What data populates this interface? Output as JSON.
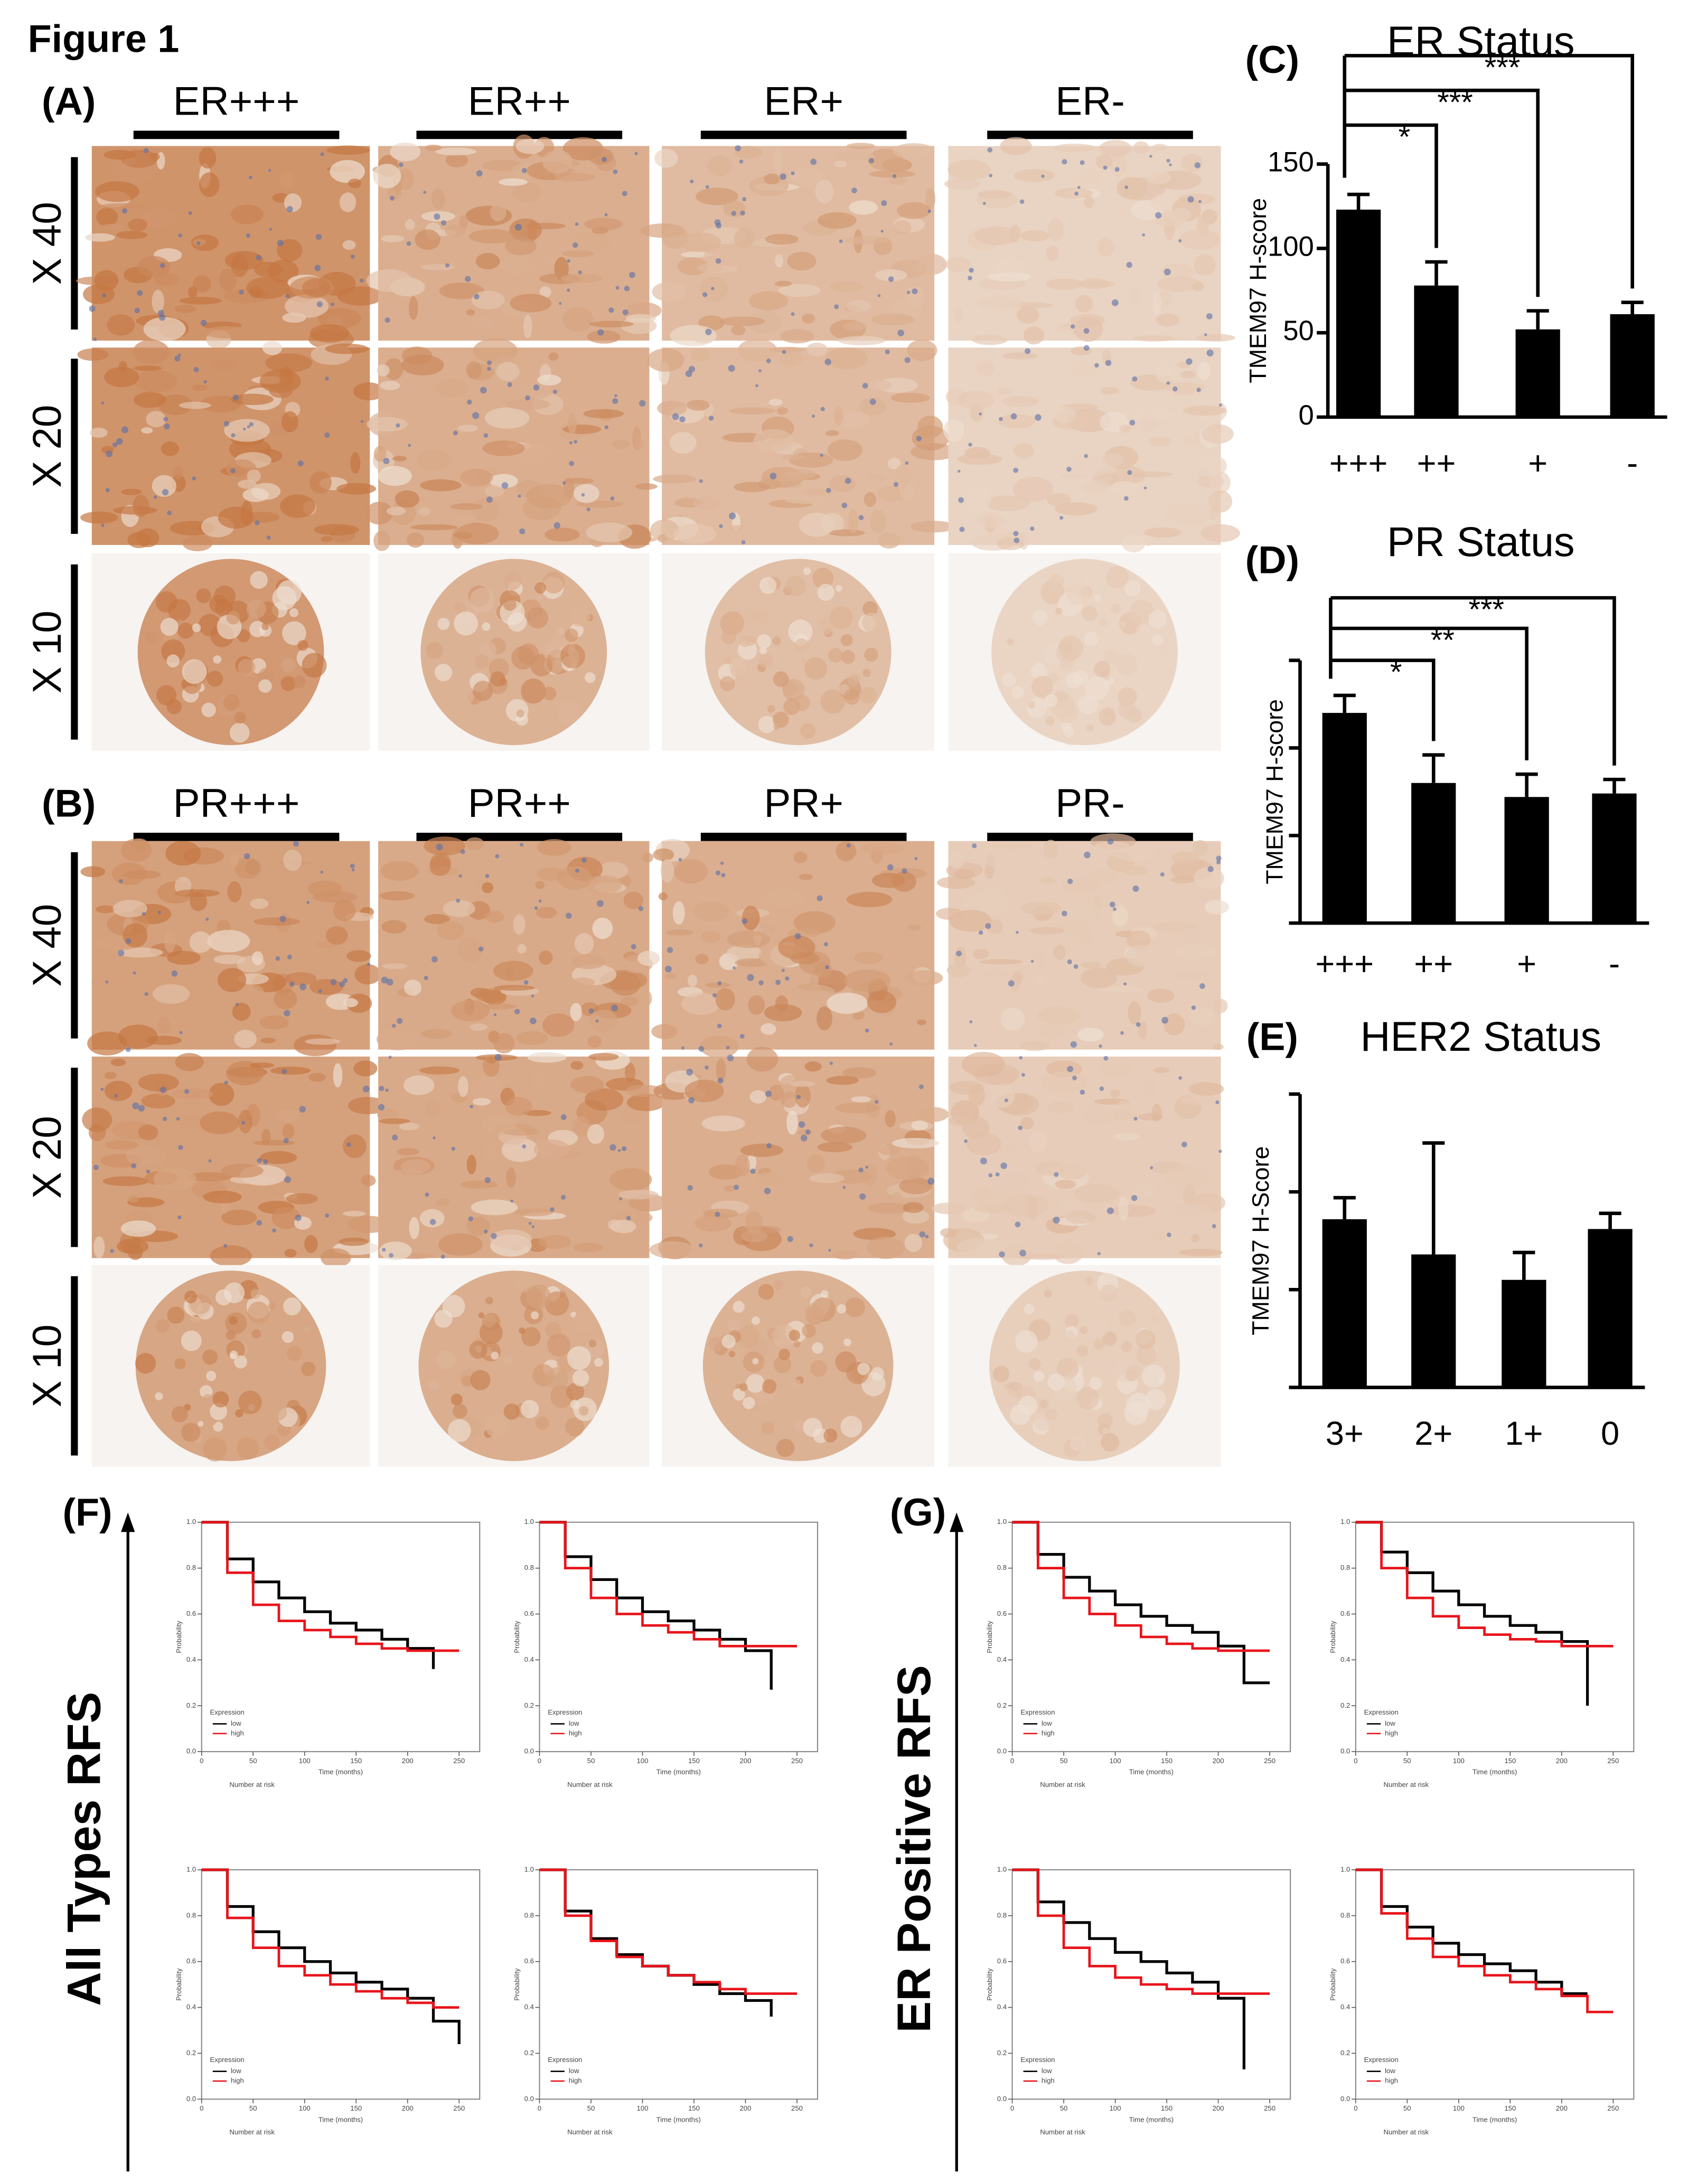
{
  "figure_title": "Figure 1",
  "panels": {
    "A": {
      "label": "(A)",
      "columns": [
        "ER+++",
        "ER++",
        "ER+",
        "ER-"
      ],
      "rows": [
        "X 40",
        "X 20",
        "X 10"
      ]
    },
    "B": {
      "label": "(B)",
      "columns": [
        "PR+++",
        "PR++",
        "PR+",
        "PR-"
      ],
      "rows": [
        "X 40",
        "X 20",
        "X 10"
      ]
    },
    "F": {
      "label": "(F)",
      "side_label": "All Types RFS"
    },
    "G": {
      "label": "(G)",
      "side_label": "ER Positive RFS"
    }
  },
  "chart_data": [
    {
      "type": "bar",
      "panel_label": "(C)",
      "title": "ER Status",
      "y_label": "TMEM97 H-score",
      "categories": [
        "+++",
        "++",
        "+",
        "-"
      ],
      "values": [
        123,
        78,
        52,
        61
      ],
      "errors": [
        9,
        14,
        11,
        7
      ],
      "color": "#000000",
      "ylim": [
        0,
        150
      ],
      "yticks": [
        0,
        50,
        100,
        150
      ],
      "ytick_labels": true,
      "significance": [
        {
          "against": "++",
          "label": "*"
        },
        {
          "against": "+",
          "label": "***"
        },
        {
          "against": "-",
          "label": "***"
        }
      ]
    },
    {
      "type": "bar",
      "panel_label": "(D)",
      "title": "PR Status",
      "y_label": "TMEM97 H-score",
      "categories": [
        "+++",
        "++",
        "+",
        "-"
      ],
      "values": [
        120,
        80,
        72,
        74
      ],
      "errors": [
        10,
        16,
        13,
        8
      ],
      "color": "#000000",
      "ylim": [
        0,
        150
      ],
      "yticks": [
        0,
        50,
        100,
        150
      ],
      "ytick_labels": false,
      "significance": [
        {
          "against": "++",
          "label": "*"
        },
        {
          "against": "+",
          "label": "**"
        },
        {
          "against": "-",
          "label": "***"
        }
      ]
    },
    {
      "type": "bar",
      "panel_label": "(E)",
      "title": "HER2 Status",
      "y_label": "TMEM97  H-Score",
      "categories": [
        "3+",
        "2+",
        "1+",
        "0"
      ],
      "values": [
        86,
        68,
        55,
        81
      ],
      "errors": [
        11,
        57,
        14,
        8
      ],
      "color": "#000000",
      "ylim": [
        0,
        150
      ],
      "yticks": [
        0,
        50,
        100,
        150
      ],
      "ytick_labels": false,
      "significance": []
    },
    {
      "type": "line",
      "panel": "F",
      "x_label": "Time (months)",
      "y_label": "Probability",
      "legend_title": "Expression",
      "risk_title": "Number at risk",
      "x": [
        0,
        25,
        50,
        75,
        100,
        125,
        150,
        175,
        200,
        225,
        250
      ],
      "xlim": [
        0,
        270
      ],
      "xticks": [
        0,
        50,
        100,
        150,
        200,
        250
      ],
      "ylim": [
        0,
        1
      ],
      "yticks": [
        {
          "value": 0,
          "label": "0.0"
        },
        {
          "value": 0.2,
          "label": "0.2"
        },
        {
          "value": 0.4,
          "label": "0.4"
        },
        {
          "value": 0.6,
          "label": "0.6"
        },
        {
          "value": 0.8,
          "label": "0.8"
        },
        {
          "value": 1,
          "label": "1.0"
        }
      ],
      "series": [
        {
          "name": "low",
          "color": "#000000",
          "values": [
            1,
            0.84,
            0.74,
            0.67,
            0.61,
            0.56,
            0.53,
            0.49,
            0.45,
            0.36,
            null
          ]
        },
        {
          "name": "high",
          "color": "#e8141b",
          "values": [
            1,
            0.78,
            0.64,
            0.57,
            0.53,
            0.5,
            0.47,
            0.45,
            0.44,
            0.44,
            0.44
          ]
        }
      ]
    },
    {
      "type": "line",
      "panel": "F",
      "x_label": "Time (months)",
      "y_label": "Probability",
      "legend_title": "Expression",
      "risk_title": "Number at risk",
      "x": [
        0,
        25,
        50,
        75,
        100,
        125,
        150,
        175,
        200,
        225,
        250
      ],
      "xlim": [
        0,
        270
      ],
      "xticks": [
        0,
        50,
        100,
        150,
        200,
        250
      ],
      "ylim": [
        0,
        1
      ],
      "yticks": [
        {
          "value": 0,
          "label": "0.0"
        },
        {
          "value": 0.2,
          "label": "0.2"
        },
        {
          "value": 0.4,
          "label": "0.4"
        },
        {
          "value": 0.6,
          "label": "0.6"
        },
        {
          "value": 0.8,
          "label": "0.8"
        },
        {
          "value": 1,
          "label": "1.0"
        }
      ],
      "series": [
        {
          "name": "low",
          "color": "#000000",
          "values": [
            1,
            0.85,
            0.75,
            0.67,
            0.61,
            0.57,
            0.53,
            0.49,
            0.44,
            0.27,
            null
          ]
        },
        {
          "name": "high",
          "color": "#e8141b",
          "values": [
            1,
            0.8,
            0.67,
            0.6,
            0.55,
            0.52,
            0.49,
            0.46,
            0.46,
            0.46,
            0.46
          ]
        }
      ]
    },
    {
      "type": "line",
      "panel": "F",
      "x_label": "Time (months)",
      "y_label": "Probability",
      "legend_title": "Expression",
      "risk_title": "Number at risk",
      "x": [
        0,
        25,
        50,
        75,
        100,
        125,
        150,
        175,
        200,
        225,
        250
      ],
      "xlim": [
        0,
        270
      ],
      "xticks": [
        0,
        50,
        100,
        150,
        200,
        250
      ],
      "ylim": [
        0,
        1
      ],
      "yticks": [
        {
          "value": 0,
          "label": "0.0"
        },
        {
          "value": 0.2,
          "label": "0.2"
        },
        {
          "value": 0.4,
          "label": "0.4"
        },
        {
          "value": 0.6,
          "label": "0.6"
        },
        {
          "value": 0.8,
          "label": "0.8"
        },
        {
          "value": 1,
          "label": "1.0"
        }
      ],
      "series": [
        {
          "name": "low",
          "color": "#000000",
          "values": [
            1,
            0.84,
            0.73,
            0.66,
            0.6,
            0.55,
            0.51,
            0.48,
            0.44,
            0.34,
            0.24
          ]
        },
        {
          "name": "high",
          "color": "#e8141b",
          "values": [
            1,
            0.79,
            0.66,
            0.58,
            0.54,
            0.5,
            0.47,
            0.44,
            0.42,
            0.4,
            0.4
          ]
        }
      ]
    },
    {
      "type": "line",
      "panel": "F",
      "x_label": "Time (months)",
      "y_label": "Probability",
      "legend_title": "Expression",
      "risk_title": "Number at risk",
      "x": [
        0,
        25,
        50,
        75,
        100,
        125,
        150,
        175,
        200,
        225,
        250
      ],
      "xlim": [
        0,
        270
      ],
      "xticks": [
        0,
        50,
        100,
        150,
        200,
        250
      ],
      "ylim": [
        0,
        1
      ],
      "yticks": [
        {
          "value": 0,
          "label": "0.0"
        },
        {
          "value": 0.2,
          "label": "0.2"
        },
        {
          "value": 0.4,
          "label": "0.4"
        },
        {
          "value": 0.6,
          "label": "0.6"
        },
        {
          "value": 0.8,
          "label": "0.8"
        },
        {
          "value": 1,
          "label": "1.0"
        }
      ],
      "series": [
        {
          "name": "low",
          "color": "#000000",
          "values": [
            1,
            0.82,
            0.7,
            0.63,
            0.58,
            0.54,
            0.5,
            0.46,
            0.43,
            0.36,
            null
          ]
        },
        {
          "name": "high",
          "color": "#e8141b",
          "values": [
            1,
            0.8,
            0.69,
            0.62,
            0.58,
            0.54,
            0.51,
            0.48,
            0.46,
            0.46,
            0.46
          ]
        }
      ]
    },
    {
      "type": "line",
      "panel": "G",
      "x_label": "Time (months)",
      "y_label": "Probability",
      "legend_title": "Expression",
      "risk_title": "Number at risk",
      "x": [
        0,
        25,
        50,
        75,
        100,
        125,
        150,
        175,
        200,
        225,
        250
      ],
      "xlim": [
        0,
        270
      ],
      "xticks": [
        0,
        50,
        100,
        150,
        200,
        250
      ],
      "ylim": [
        0,
        1
      ],
      "yticks": [
        {
          "value": 0,
          "label": "0.0"
        },
        {
          "value": 0.2,
          "label": "0.2"
        },
        {
          "value": 0.4,
          "label": "0.4"
        },
        {
          "value": 0.6,
          "label": "0.6"
        },
        {
          "value": 0.8,
          "label": "0.8"
        },
        {
          "value": 1,
          "label": "1.0"
        }
      ],
      "series": [
        {
          "name": "low",
          "color": "#000000",
          "values": [
            1,
            0.86,
            0.76,
            0.7,
            0.64,
            0.59,
            0.55,
            0.52,
            0.46,
            0.3,
            0.3
          ]
        },
        {
          "name": "high",
          "color": "#e8141b",
          "values": [
            1,
            0.8,
            0.67,
            0.6,
            0.55,
            0.5,
            0.47,
            0.45,
            0.44,
            0.44,
            0.44
          ]
        }
      ]
    },
    {
      "type": "line",
      "panel": "G",
      "x_label": "Time (months)",
      "y_label": "Probability",
      "legend_title": "Expression",
      "risk_title": "Number at risk",
      "x": [
        0,
        25,
        50,
        75,
        100,
        125,
        150,
        175,
        200,
        225,
        250
      ],
      "xlim": [
        0,
        270
      ],
      "xticks": [
        0,
        50,
        100,
        150,
        200,
        250
      ],
      "ylim": [
        0,
        1
      ],
      "yticks": [
        {
          "value": 0,
          "label": "0.0"
        },
        {
          "value": 0.2,
          "label": "0.2"
        },
        {
          "value": 0.4,
          "label": "0.4"
        },
        {
          "value": 0.6,
          "label": "0.6"
        },
        {
          "value": 0.8,
          "label": "0.8"
        },
        {
          "value": 1,
          "label": "1.0"
        }
      ],
      "series": [
        {
          "name": "low",
          "color": "#000000",
          "values": [
            1,
            0.87,
            0.78,
            0.7,
            0.64,
            0.59,
            0.55,
            0.52,
            0.48,
            0.2,
            null
          ]
        },
        {
          "name": "high",
          "color": "#e8141b",
          "values": [
            1,
            0.8,
            0.67,
            0.59,
            0.54,
            0.51,
            0.49,
            0.48,
            0.46,
            0.46,
            0.46
          ]
        }
      ]
    },
    {
      "type": "line",
      "panel": "G",
      "x_label": "Time (months)",
      "y_label": "Probability",
      "legend_title": "Expression",
      "risk_title": "Number at risk",
      "x": [
        0,
        25,
        50,
        75,
        100,
        125,
        150,
        175,
        200,
        225,
        250
      ],
      "xlim": [
        0,
        270
      ],
      "xticks": [
        0,
        50,
        100,
        150,
        200,
        250
      ],
      "ylim": [
        0,
        1
      ],
      "yticks": [
        {
          "value": 0,
          "label": "0.0"
        },
        {
          "value": 0.2,
          "label": "0.2"
        },
        {
          "value": 0.4,
          "label": "0.4"
        },
        {
          "value": 0.6,
          "label": "0.6"
        },
        {
          "value": 0.8,
          "label": "0.8"
        },
        {
          "value": 1,
          "label": "1.0"
        }
      ],
      "series": [
        {
          "name": "low",
          "color": "#000000",
          "values": [
            1,
            0.86,
            0.77,
            0.7,
            0.64,
            0.6,
            0.55,
            0.51,
            0.44,
            0.13,
            null
          ]
        },
        {
          "name": "high",
          "color": "#e8141b",
          "values": [
            1,
            0.8,
            0.66,
            0.58,
            0.53,
            0.5,
            0.48,
            0.46,
            0.46,
            0.46,
            0.46
          ]
        }
      ]
    },
    {
      "type": "line",
      "panel": "G",
      "x_label": "Time (months)",
      "y_label": "Probability",
      "legend_title": "Expression",
      "risk_title": "Number at risk",
      "x": [
        0,
        25,
        50,
        75,
        100,
        125,
        150,
        175,
        200,
        225,
        250
      ],
      "xlim": [
        0,
        270
      ],
      "xticks": [
        0,
        50,
        100,
        150,
        200,
        250
      ],
      "ylim": [
        0,
        1
      ],
      "yticks": [
        {
          "value": 0,
          "label": "0.0"
        },
        {
          "value": 0.2,
          "label": "0.2"
        },
        {
          "value": 0.4,
          "label": "0.4"
        },
        {
          "value": 0.6,
          "label": "0.6"
        },
        {
          "value": 0.8,
          "label": "0.8"
        },
        {
          "value": 1,
          "label": "1.0"
        }
      ],
      "series": [
        {
          "name": "low",
          "color": "#000000",
          "values": [
            1,
            0.84,
            0.75,
            0.68,
            0.63,
            0.59,
            0.56,
            0.51,
            0.46,
            0.46,
            null
          ]
        },
        {
          "name": "high",
          "color": "#e8141b",
          "values": [
            1,
            0.81,
            0.7,
            0.62,
            0.58,
            0.54,
            0.51,
            0.48,
            0.45,
            0.38,
            0.38
          ]
        }
      ]
    }
  ]
}
